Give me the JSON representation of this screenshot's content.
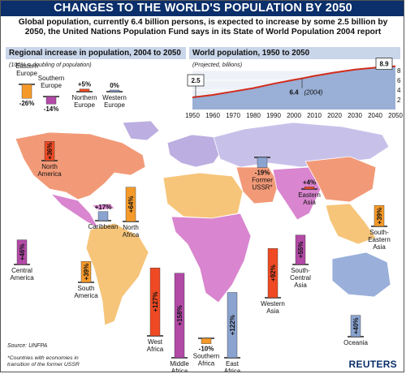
{
  "title": "CHANGES TO THE WORLD'S POPULATION BY 2050",
  "subtitle": "Global population, currently 6.4 billion persons, is expected to increase by some 2.5 billion by 2050, the United Nations Population Fund says in its State of World Population 2004 report",
  "source": "Source: UNFPA",
  "footnote": "*Countries with economies in transition of the former USSR",
  "brand": "REUTERS",
  "colors": {
    "banner": "#0b2f6b",
    "ocean": "#ffffff",
    "increase_bar": "#ef4a23",
    "panel": "#c9d6ea"
  },
  "chart_data": [
    {
      "type": "bar",
      "title": "Regional increase in population, 2004 to 2050",
      "note": "(100% = doubling of population)",
      "unit": "%",
      "categories": [
        "Eastern Europe",
        "Southern Europe",
        "Northern Europe",
        "Western Europe",
        "North America",
        "Caribbean",
        "North Africa",
        "Central America",
        "South America",
        "West Africa",
        "Middle Africa",
        "Southern Africa",
        "East Africa",
        "Western Asia",
        "South-Central Asia",
        "Eastern Asia",
        "South-Eastern Asia",
        "Oceania",
        "Former USSR*"
      ],
      "values": [
        -26,
        -14,
        5,
        0,
        36,
        17,
        64,
        46,
        39,
        127,
        158,
        -10,
        122,
        92,
        55,
        4,
        39,
        40,
        -19
      ]
    },
    {
      "type": "area",
      "title": "World population, 1950 to 2050",
      "note": "(Projected, billions)",
      "x": [
        1950,
        1960,
        1970,
        1980,
        1990,
        2000,
        2004,
        2010,
        2020,
        2030,
        2040,
        2050
      ],
      "y": [
        2.5,
        3.0,
        3.7,
        4.4,
        5.3,
        6.1,
        6.4,
        6.9,
        7.6,
        8.2,
        8.6,
        8.9
      ],
      "xlim": [
        1950,
        2050
      ],
      "ylim": [
        0,
        8
      ],
      "y_ticks": [
        2,
        4,
        6,
        8
      ],
      "x_ticks": [
        "1950",
        "1960",
        "1970",
        "1980",
        "1990",
        "2000",
        "2010",
        "2020",
        "2030",
        "2040",
        "2050"
      ],
      "annotations": [
        {
          "label": "2.5",
          "year": 1950
        },
        {
          "label": "6.4",
          "year": 2004,
          "note": "(2004)"
        },
        {
          "label": "8.9",
          "year": 2050
        }
      ]
    }
  ]
}
